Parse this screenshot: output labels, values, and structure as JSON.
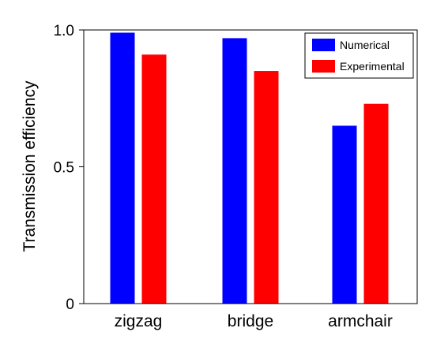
{
  "chart_data": {
    "type": "bar",
    "categories": [
      "zigzag",
      "bridge",
      "armchair"
    ],
    "series": [
      {
        "name": "Numerical",
        "color": "#0000ff",
        "values": [
          0.99,
          0.97,
          0.65
        ]
      },
      {
        "name": "Experimental",
        "color": "#ff0000",
        "values": [
          0.91,
          0.85,
          0.73
        ]
      }
    ],
    "title": "",
    "xlabel": "",
    "ylabel": "Transmission efficiency",
    "ylim": [
      0,
      1.0
    ],
    "yticks": [
      0,
      0.5,
      1.0
    ],
    "ytick_labels": [
      "0",
      "0.5",
      "1.0"
    ],
    "grid": false,
    "legend_position": "top-right"
  }
}
